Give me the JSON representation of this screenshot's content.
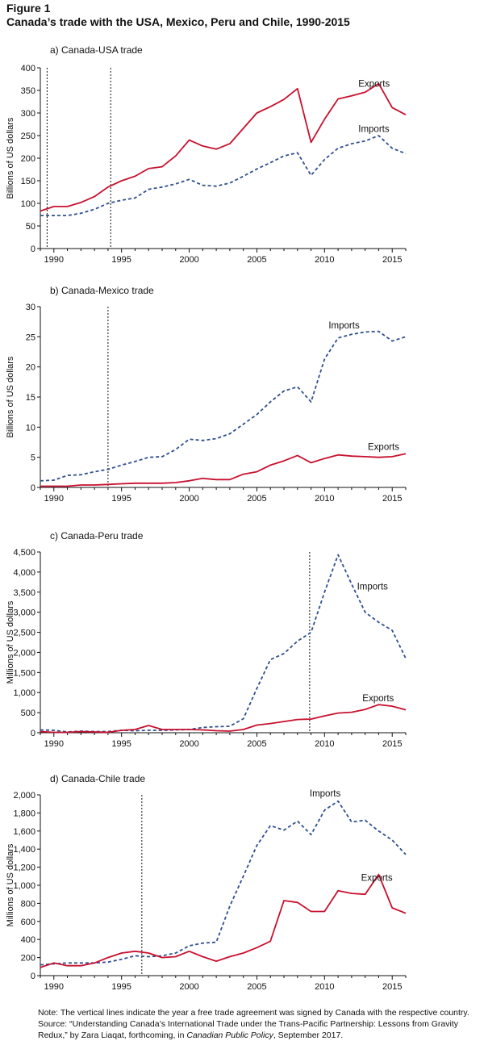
{
  "figure": {
    "label": "Figure 1",
    "title": "Canada’s trade with the USA, Mexico, Peru and Chile, 1990-2015"
  },
  "note": {
    "part1": "Note: The vertical lines indicate the year a free trade agreement was signed by Canada with the respective country. Source: “Understanding Canada’s International Trade under the Trans-Pacific Partnership: Lessons from Gravity Redux,” by Zara Liaqat, forthcoming, in ",
    "italic": "Canadian Public Policy",
    "part2": ", September 2017."
  },
  "colors": {
    "exports": "#c8102e",
    "imports": "#2f4f8f",
    "axis": "#111111"
  },
  "chart_data": [
    {
      "type": "line",
      "subtitle": "a) Canada-USA trade",
      "ylabel": "Billions of US dollars",
      "xlim": [
        1989,
        2016
      ],
      "ylim": [
        0,
        400
      ],
      "yticks": [
        0,
        50,
        100,
        150,
        200,
        250,
        300,
        350,
        400
      ],
      "ytick_labels": [
        "0",
        "50",
        "100",
        "150",
        "200",
        "250",
        "300",
        "350",
        "400"
      ],
      "xticks": [
        1990,
        1995,
        2000,
        2005,
        2010,
        2015
      ],
      "xtick_labels": [
        "1990",
        "1995",
        "2000",
        "2005",
        "2010",
        "2015"
      ],
      "vlines": [
        1989.5,
        1994.2
      ],
      "x": [
        1989,
        1990,
        1991,
        1992,
        1993,
        1994,
        1995,
        1996,
        1997,
        1998,
        1999,
        2000,
        2001,
        2002,
        2003,
        2004,
        2005,
        2006,
        2007,
        2008,
        2009,
        2010,
        2011,
        2012,
        2013,
        2014,
        2015,
        2016
      ],
      "series": [
        {
          "name": "Exports",
          "style": "solid",
          "values": [
            83,
            93,
            93,
            102,
            115,
            136,
            150,
            160,
            177,
            181,
            205,
            240,
            227,
            220,
            232,
            266,
            300,
            314,
            330,
            354,
            235,
            286,
            331,
            338,
            346,
            365,
            312,
            296
          ],
          "label_x": 2012.5,
          "label_y": 358
        },
        {
          "name": "Imports",
          "style": "dashed",
          "values": [
            73,
            73,
            73,
            78,
            87,
            100,
            107,
            112,
            131,
            136,
            143,
            153,
            140,
            138,
            145,
            160,
            176,
            190,
            205,
            212,
            162,
            197,
            222,
            232,
            238,
            250,
            222,
            210
          ],
          "label_x": 2012.5,
          "label_y": 258
        }
      ]
    },
    {
      "type": "line",
      "subtitle": "b) Canada-Mexico trade",
      "ylabel": "Billions of US dollars",
      "xlim": [
        1989,
        2016
      ],
      "ylim": [
        0,
        30
      ],
      "yticks": [
        0,
        5,
        10,
        15,
        20,
        25,
        30
      ],
      "ytick_labels": [
        "0",
        "5",
        "10",
        "15",
        "20",
        "25",
        "30"
      ],
      "xticks": [
        1990,
        1995,
        2000,
        2005,
        2010,
        2015
      ],
      "xtick_labels": [
        "1990",
        "1995",
        "2000",
        "2005",
        "2010",
        "2015"
      ],
      "vlines": [
        1994
      ],
      "x": [
        1989,
        1990,
        1991,
        1992,
        1993,
        1994,
        1995,
        1996,
        1997,
        1998,
        1999,
        2000,
        2001,
        2002,
        2003,
        2004,
        2005,
        2006,
        2007,
        2008,
        2009,
        2010,
        2011,
        2012,
        2013,
        2014,
        2015,
        2016
      ],
      "series": [
        {
          "name": "Imports",
          "style": "dashed",
          "values": [
            1.1,
            1.2,
            2.0,
            2.1,
            2.6,
            3.0,
            3.7,
            4.3,
            5.0,
            5.1,
            6.3,
            8.0,
            7.8,
            8.1,
            8.9,
            10.5,
            12.1,
            14.2,
            16.0,
            16.7,
            14.2,
            21.3,
            24.8,
            25.4,
            25.8,
            25.9,
            24.3,
            25.0
          ],
          "label_x": 2010.3,
          "label_y": 26.4
        },
        {
          "name": "Exports",
          "style": "solid",
          "values": [
            0.2,
            0.2,
            0.2,
            0.4,
            0.4,
            0.5,
            0.6,
            0.7,
            0.7,
            0.7,
            0.8,
            1.1,
            1.5,
            1.3,
            1.3,
            2.2,
            2.6,
            3.7,
            4.4,
            5.3,
            4.1,
            4.8,
            5.4,
            5.2,
            5.1,
            5.0,
            5.1,
            5.6
          ],
          "label_x": 2013.2,
          "label_y": 6.2
        }
      ]
    },
    {
      "type": "line",
      "subtitle": "c) Canada-Peru trade",
      "ylabel": "Millions of US dollars",
      "xlim": [
        1989,
        2016
      ],
      "ylim": [
        0,
        4500
      ],
      "yticks": [
        0,
        500,
        1000,
        1500,
        2000,
        2500,
        3000,
        3500,
        4000,
        4500
      ],
      "ytick_labels": [
        "0",
        "500",
        "1,000",
        "1,500",
        "2,000",
        "2,500",
        "3,000",
        "3,500",
        "4,000",
        "4,500"
      ],
      "xticks": [
        1990,
        1995,
        2000,
        2005,
        2010,
        2015
      ],
      "xtick_labels": [
        "1990",
        "1995",
        "2000",
        "2005",
        "2010",
        "2015"
      ],
      "vlines": [
        2008.9
      ],
      "x": [
        1989,
        1990,
        1991,
        1992,
        1993,
        1994,
        1995,
        1996,
        1997,
        1998,
        1999,
        2000,
        2001,
        2002,
        2003,
        2004,
        2005,
        2006,
        2007,
        2008,
        2009,
        2010,
        2011,
        2012,
        2013,
        2014,
        2015,
        2016
      ],
      "series": [
        {
          "name": "Imports",
          "style": "dashed",
          "values": [
            70,
            60,
            20,
            40,
            30,
            30,
            60,
            50,
            60,
            60,
            70,
            80,
            130,
            150,
            160,
            350,
            1100,
            1820,
            1970,
            2280,
            2500,
            3500,
            4430,
            3700,
            3000,
            2750,
            2550,
            1850
          ],
          "label_x": 2012.4,
          "label_y": 3570
        },
        {
          "name": "Exports",
          "style": "solid",
          "values": [
            30,
            10,
            10,
            30,
            20,
            10,
            60,
            80,
            180,
            80,
            80,
            80,
            70,
            50,
            40,
            80,
            190,
            230,
            280,
            330,
            340,
            420,
            490,
            510,
            580,
            700,
            660,
            570
          ],
          "label_x": 2012.8,
          "label_y": 780
        }
      ]
    },
    {
      "type": "line",
      "subtitle": "d) Canada-Chile trade",
      "ylabel": "Millions of US dollars",
      "xlim": [
        1989,
        2016
      ],
      "ylim": [
        0,
        2000
      ],
      "yticks": [
        0,
        200,
        400,
        600,
        800,
        1000,
        1200,
        1400,
        1600,
        1800,
        2000
      ],
      "ytick_labels": [
        "0",
        "200",
        "400",
        "600",
        "800",
        "1,000",
        "1,200",
        "1,400",
        "1,600",
        "1,800",
        "2,000"
      ],
      "xticks": [
        1990,
        1995,
        2000,
        2005,
        2010,
        2015
      ],
      "xtick_labels": [
        "1990",
        "1995",
        "2000",
        "2005",
        "2010",
        "2015"
      ],
      "vlines": [
        1996.5
      ],
      "x": [
        1989,
        1990,
        1991,
        1992,
        1993,
        1994,
        1995,
        1996,
        1997,
        1998,
        1999,
        2000,
        2001,
        2002,
        2003,
        2004,
        2005,
        2006,
        2007,
        2008,
        2009,
        2010,
        2011,
        2012,
        2013,
        2014,
        2015,
        2016
      ],
      "series": [
        {
          "name": "Imports",
          "style": "dashed",
          "values": [
            120,
            130,
            140,
            140,
            140,
            150,
            180,
            220,
            210,
            220,
            250,
            330,
            360,
            370,
            770,
            1100,
            1440,
            1660,
            1610,
            1710,
            1560,
            1830,
            1930,
            1700,
            1720,
            1600,
            1500,
            1340
          ],
          "label_x": 2008.9,
          "label_y": 1980
        },
        {
          "name": "Exports",
          "style": "solid",
          "values": [
            90,
            140,
            110,
            110,
            140,
            200,
            250,
            270,
            250,
            200,
            210,
            270,
            210,
            160,
            210,
            250,
            310,
            380,
            830,
            810,
            710,
            710,
            940,
            910,
            900,
            1120,
            750,
            690
          ],
          "label_x": 2012.7,
          "label_y": 1050
        }
      ]
    }
  ]
}
